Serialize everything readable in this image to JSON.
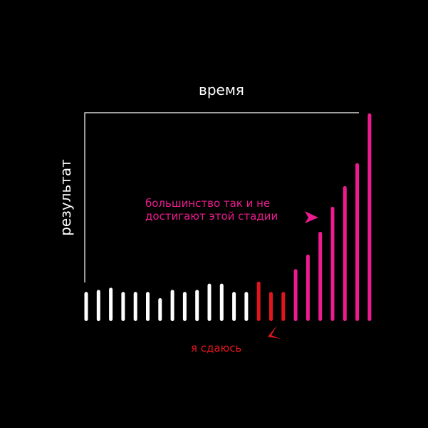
{
  "chart_data": {
    "type": "bar",
    "xlabel": "время",
    "ylabel": "результат",
    "ylim": [
      0,
      100
    ],
    "grid": false,
    "legend": "none",
    "bar_style": "rounded vertical strokes",
    "colors": {
      "background": "#000000",
      "axis": "#ffffff",
      "normal": "#ffffff",
      "give_up": "#e0161e",
      "growth": "#ec1c8f"
    },
    "values": [
      14,
      15,
      16,
      14,
      14,
      14,
      11,
      15,
      14,
      15,
      18,
      18,
      14,
      14,
      19,
      14,
      14,
      25,
      32,
      43,
      55,
      65,
      76,
      100
    ],
    "groups": [
      "normal",
      "normal",
      "normal",
      "normal",
      "normal",
      "normal",
      "normal",
      "normal",
      "normal",
      "normal",
      "normal",
      "normal",
      "normal",
      "normal",
      "give_up",
      "give_up",
      "give_up",
      "growth",
      "growth",
      "growth",
      "growth",
      "growth",
      "growth",
      "growth"
    ],
    "annotations": [
      {
        "name": "give-up",
        "lines": [
          "я сдаюсь"
        ],
        "color": "#e0161e",
        "arrow_direction": "up-right"
      },
      {
        "name": "most-never-reach",
        "lines": [
          "большинство так и не",
          "достигают этой стадии"
        ],
        "color": "#ec1c8f",
        "arrow_direction": "right"
      }
    ]
  }
}
